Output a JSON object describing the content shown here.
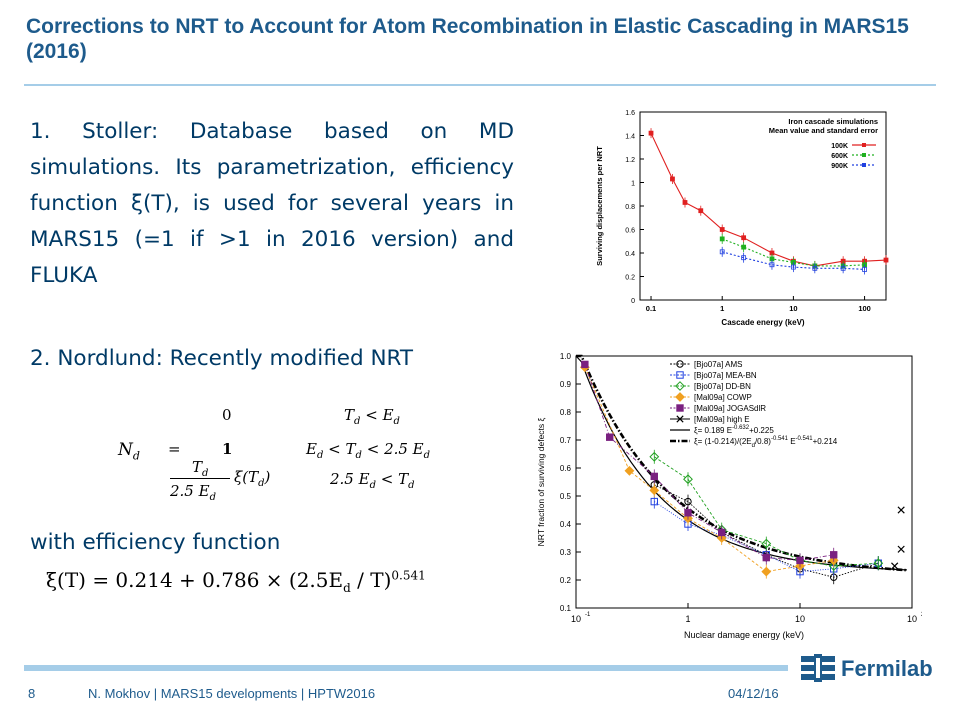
{
  "title": "Corrections to NRT to Account for Atom Recombination in Elastic Cascading in MARS15 (2016)",
  "point1": "1. Stoller: Database based on MD simulations. Its parametrization, efficiency function  ξ(T), is used for several years in MARS15 (=1 if >1 in 2016 version) and FLUKA",
  "point2": "2. Nordlund: Recently modified NRT",
  "point3": "with efficiency function",
  "equation1": {
    "lhs": "N",
    "lhs_sub": "d",
    "eq": "=",
    "v1": "0",
    "v2": "1",
    "v3_num": "T",
    "v3_num_sub": "d",
    "v3_den": "2.5 E",
    "v3_den_sub": "d",
    "v3_fn": "ξ(T",
    "v3_fn_sub": "d",
    "v3_fn_close": ")",
    "c1": "T",
    "c1_sub": "d",
    "c1_op": "<",
    "c1_r": "E",
    "c1_r_sub": "d",
    "c2_l": "E",
    "c2_l_sub": "d",
    "c2_op1": "<",
    "c2_m": "T",
    "c2_m_sub": "d",
    "c2_op2": "<",
    "c2_r": "2.5 E",
    "c2_r_sub": "d",
    "c3_l": "2.5 E",
    "c3_l_sub": "d",
    "c3_op": "<",
    "c3_r": "T",
    "c3_r_sub": "d"
  },
  "equation2": {
    "text": "ξ(T) = 0.214 + 0.786 × (2.5E",
    "sub": "d",
    "text2": " / T)",
    "sup": "0.541"
  },
  "figure1": {
    "legend_title": "Iron cascade simulations",
    "legend_subtitle": "Mean value and standard error",
    "xlabel": "Cascade energy (keV)",
    "ylabel": "Surviving displacements per NRT",
    "xticks": [
      "0.1",
      "1",
      "10",
      "100"
    ],
    "yticks": [
      "0",
      "0.2",
      "0.4",
      "0.6",
      "0.8",
      "1",
      "1.2",
      "1.4",
      "1.6"
    ],
    "chart_data": {
      "type": "line",
      "x_scale": "log",
      "xlim": [
        0.07,
        200
      ],
      "ylim": [
        0,
        1.6
      ],
      "series": [
        {
          "name": "100K",
          "color": "#e02020",
          "x": [
            0.1,
            0.2,
            0.3,
            0.5,
            1,
            2,
            5,
            10,
            20,
            50,
            100,
            200
          ],
          "y": [
            1.42,
            1.03,
            0.83,
            0.76,
            0.6,
            0.53,
            0.4,
            0.33,
            0.29,
            0.33,
            0.33,
            0.34
          ]
        },
        {
          "name": "600K",
          "color": "#20b020",
          "x": [
            1,
            2,
            5,
            10,
            20,
            50,
            100
          ],
          "y": [
            0.52,
            0.45,
            0.35,
            0.32,
            0.29,
            0.29,
            0.3
          ]
        },
        {
          "name": "900K",
          "color": "#2040e0",
          "x": [
            1,
            2,
            5,
            10,
            20,
            50,
            100
          ],
          "y": [
            0.41,
            0.36,
            0.3,
            0.28,
            0.27,
            0.27,
            0.26
          ]
        }
      ]
    }
  },
  "figure2": {
    "xlabel": "Nuclear damage energy (keV)",
    "ylabel": "NRT fraction of surviving defects ξ",
    "xticks": [
      "10",
      "1",
      "10",
      "10"
    ],
    "xtick_sups": [
      "-1",
      "",
      "",
      "2"
    ],
    "yticks": [
      "0.1",
      "0.2",
      "0.3",
      "0.4",
      "0.5",
      "0.6",
      "0.7",
      "0.8",
      "0.9",
      "1.0"
    ],
    "legend": [
      "[Bjo07a] AMS",
      "[Bjo07a] MEA-BN",
      "[Bjo07a] DD-BN",
      "[Mal09a] COWP",
      "[Mal09a] JOGASdlR",
      "[Mal09a] high E"
    ],
    "legend_fit1": "ξ= 0.189 E",
    "legend_fit1_sup": "-0.632",
    "legend_fit1_tail": "+0.225",
    "legend_fit2": "ξ= (1-0.214)/(2E",
    "legend_fit2_sub": "d",
    "legend_fit2_mid": "/0.8)",
    "legend_fit2_sup": "-0.541",
    "legend_fit2_mid2": " E",
    "legend_fit2_sup2": "-0.541",
    "legend_fit2_tail": "+0.214",
    "chart_data": {
      "type": "scatter",
      "x_scale": "log",
      "xlim": [
        0.1,
        100
      ],
      "ylim": [
        0.1,
        1.0
      ],
      "series": [
        {
          "name": "[Bjo07a] AMS",
          "color": "#000000",
          "marker": "circle",
          "x": [
            0.5,
            1,
            2,
            5,
            10,
            20,
            50
          ],
          "y": [
            0.54,
            0.48,
            0.37,
            0.29,
            0.24,
            0.21,
            0.26
          ]
        },
        {
          "name": "[Bjo07a] MEA-BN",
          "color": "#2040e0",
          "marker": "square",
          "x": [
            0.5,
            1,
            2,
            5,
            10,
            20,
            50
          ],
          "y": [
            0.48,
            0.4,
            0.36,
            0.29,
            0.23,
            0.24,
            0.26
          ]
        },
        {
          "name": "[Bjo07a] DD-BN",
          "color": "#20a020",
          "marker": "diamond",
          "x": [
            0.5,
            1,
            2,
            5,
            10,
            20,
            50
          ],
          "y": [
            0.64,
            0.56,
            0.38,
            0.33,
            0.27,
            0.25,
            0.26
          ]
        },
        {
          "name": "[Mal09a] COWP",
          "color": "#f0a020",
          "marker": "filled-diamond",
          "x": [
            0.12,
            0.3,
            0.5,
            1,
            2,
            5,
            10,
            20
          ],
          "y": [
            0.96,
            0.59,
            0.52,
            0.42,
            0.35,
            0.23,
            0.25,
            0.27
          ]
        },
        {
          "name": "[Mal09a] JOGASdlR",
          "color": "#7a2080",
          "marker": "filled-square",
          "x": [
            0.12,
            0.2,
            0.5,
            1,
            2,
            5,
            10,
            20
          ],
          "y": [
            0.97,
            0.71,
            0.57,
            0.44,
            0.37,
            0.28,
            0.27,
            0.29
          ]
        },
        {
          "name": "[Mal09a] high E",
          "color": "#000000",
          "marker": "x",
          "x": [
            80,
            80,
            70
          ],
          "y": [
            0.45,
            0.31,
            0.25
          ]
        }
      ],
      "fits": [
        {
          "name": "ξ= 0.189 E^-0.632 +0.225",
          "color": "#000000",
          "style": "solid",
          "a": 0.189,
          "b": -0.632,
          "c": 0.225
        },
        {
          "name": "ξ= (1-0.214)/(2Ed/0.8)^-0.541 E^-0.541 +0.214",
          "color": "#000000",
          "style": "dashdot",
          "a": 0.241,
          "b": -0.541,
          "c": 0.214
        }
      ]
    }
  },
  "footer": {
    "page": "8",
    "author": "N. Mokhov | MARS15 developments | HPTW2016",
    "date": "04/12/16"
  },
  "logo": {
    "text": "Fermilab",
    "color": "#1e5b8c"
  }
}
